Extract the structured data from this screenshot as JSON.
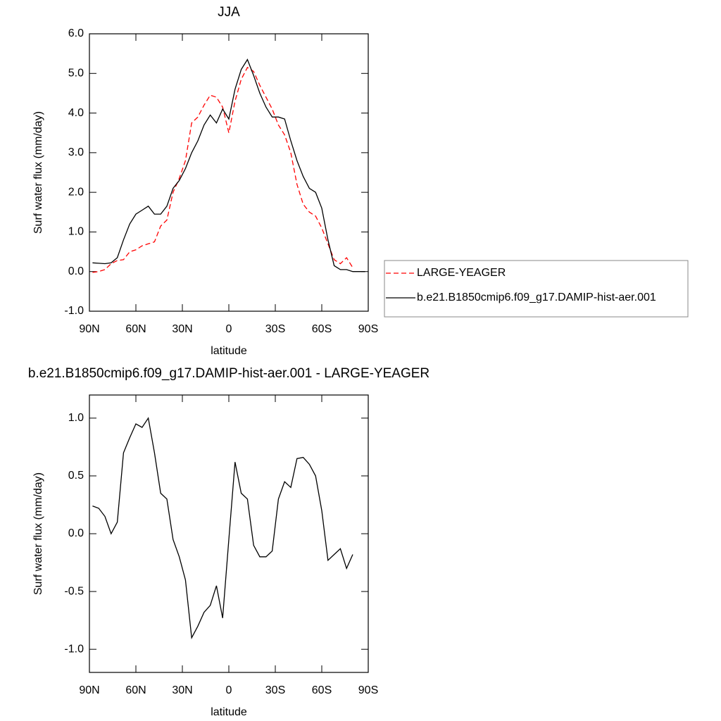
{
  "chart_data": [
    {
      "type": "line",
      "title": "JJA",
      "xlabel": "latitude",
      "ylabel": "Surf water flux (mm/day)",
      "x": [
        88,
        84,
        80,
        76,
        72,
        68,
        64,
        60,
        56,
        52,
        48,
        44,
        40,
        36,
        32,
        28,
        24,
        20,
        16,
        12,
        8,
        4,
        0,
        -4,
        -8,
        -12,
        -16,
        -20,
        -24,
        -28,
        -32,
        -36,
        -40,
        -44,
        -48,
        -52,
        -56,
        -60,
        -64,
        -68,
        -72,
        -76,
        -80,
        -84,
        -88
      ],
      "series": [
        {
          "name": "LARGE-YEAGER",
          "color": "#ff0000",
          "line_style": "dashed",
          "values": [
            -0.02,
            0.0,
            0.05,
            0.2,
            0.28,
            0.3,
            0.5,
            0.55,
            0.65,
            0.7,
            0.75,
            1.15,
            1.3,
            2.0,
            2.35,
            2.8,
            3.75,
            3.9,
            4.2,
            4.45,
            4.4,
            4.15,
            3.5,
            4.3,
            4.85,
            5.15,
            5.05,
            4.7,
            4.4,
            4.1,
            3.7,
            3.45,
            3.0,
            2.2,
            1.7,
            1.5,
            1.4,
            1.1,
            0.7,
            0.3,
            0.2,
            0.35,
            0.1,
            null,
            null
          ]
        },
        {
          "name": "b.e21.B1850cmip6.f09_g17.DAMIP-hist-aer.001",
          "color": "#000000",
          "line_style": "solid",
          "values": [
            0.22,
            0.21,
            0.2,
            0.22,
            0.35,
            0.8,
            1.2,
            1.45,
            1.55,
            1.65,
            1.45,
            1.45,
            1.65,
            2.1,
            2.3,
            2.6,
            3.0,
            3.3,
            3.7,
            3.95,
            3.75,
            4.1,
            3.85,
            4.6,
            5.1,
            5.35,
            4.95,
            4.5,
            4.15,
            3.9,
            3.9,
            3.85,
            3.3,
            2.8,
            2.4,
            2.1,
            2.0,
            1.6,
            0.8,
            0.15,
            0.05,
            0.05,
            0.0,
            0.0,
            0.0
          ]
        }
      ],
      "xlim": [
        90,
        -90
      ],
      "xticks": [
        {
          "value": 90,
          "label": "90N"
        },
        {
          "value": 60,
          "label": "60N"
        },
        {
          "value": 30,
          "label": "30N"
        },
        0,
        {
          "value": -30,
          "label": "30S"
        },
        {
          "value": -60,
          "label": "60S"
        },
        {
          "value": -90,
          "label": "90S"
        }
      ],
      "ylim": [
        -1,
        6
      ],
      "yticks": [
        {
          "value": -1,
          "label": "-1.0"
        },
        {
          "value": 0,
          "label": "0.0"
        },
        {
          "value": 1,
          "label": "1.0"
        },
        {
          "value": 2,
          "label": "2.0"
        },
        {
          "value": 3,
          "label": "3.0"
        },
        {
          "value": 4,
          "label": "4.0"
        },
        {
          "value": 5,
          "label": "5.0"
        },
        {
          "value": 6,
          "label": "6.0"
        }
      ],
      "legend": "right"
    },
    {
      "type": "line",
      "title": "b.e21.B1850cmip6.f09_g17.DAMIP-hist-aer.001 - LARGE-YEAGER",
      "xlabel": "latitude",
      "ylabel": "Surf water flux (mm/day)",
      "x": [
        88,
        84,
        80,
        76,
        72,
        68,
        64,
        60,
        56,
        52,
        48,
        44,
        40,
        36,
        32,
        28,
        24,
        20,
        16,
        12,
        8,
        4,
        0,
        -4,
        -8,
        -12,
        -16,
        -20,
        -24,
        -28,
        -32,
        -36,
        -40,
        -44,
        -48,
        -52,
        -56,
        -60,
        -64,
        -68,
        -72,
        -76,
        -80,
        -84,
        -88
      ],
      "series": [
        {
          "color": "#000000",
          "line_style": "solid",
          "values": [
            0.24,
            0.22,
            0.15,
            0.0,
            0.1,
            0.7,
            0.83,
            0.95,
            0.92,
            1.0,
            0.7,
            0.35,
            0.3,
            -0.05,
            -0.2,
            -0.4,
            -0.9,
            -0.8,
            -0.68,
            -0.62,
            -0.45,
            -0.73,
            -0.05,
            0.62,
            0.35,
            0.3,
            -0.1,
            -0.2,
            -0.2,
            -0.15,
            0.3,
            0.45,
            0.4,
            0.65,
            0.66,
            0.6,
            0.5,
            0.2,
            -0.23,
            -0.18,
            -0.13,
            -0.3,
            -0.18,
            null,
            null
          ]
        }
      ],
      "xlim": [
        90,
        -90
      ],
      "xticks": [
        {
          "value": 90,
          "label": "90N"
        },
        {
          "value": 60,
          "label": "60N"
        },
        {
          "value": 30,
          "label": "30N"
        },
        0,
        {
          "value": -30,
          "label": "30S"
        },
        {
          "value": -60,
          "label": "60S"
        },
        {
          "value": -90,
          "label": "90S"
        }
      ],
      "ylim": [
        -1.2,
        1.2
      ],
      "yticks": [
        {
          "value": -1,
          "label": "-1.0"
        },
        {
          "value": -0.5,
          "label": "-0.5"
        },
        {
          "value": 0,
          "label": "0.0"
        },
        {
          "value": 0.5,
          "label": "0.5"
        },
        {
          "value": 1,
          "label": "1.0"
        }
      ]
    }
  ]
}
